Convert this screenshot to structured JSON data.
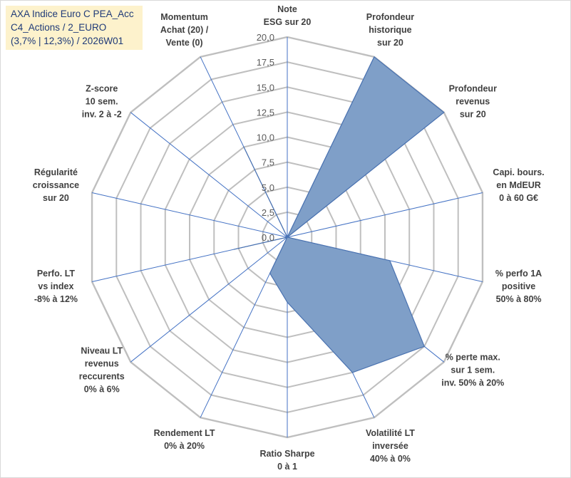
{
  "title": {
    "lines": [
      "AXA Indice Euro C PEA_Acc",
      "C4_Actions / 2_EURO",
      "(3,7% | 12,3%) / 2026W01"
    ]
  },
  "chart_data": {
    "type": "radar",
    "rmin": 0,
    "rmax": 20,
    "tick_step": 2.5,
    "tick_labels": [
      "0,0",
      "2,5",
      "5,0",
      "7,5",
      "10,0",
      "12,5",
      "15,0",
      "17,5",
      "20,0"
    ],
    "gridlines": true,
    "legend": "none",
    "axes": [
      [
        "Note",
        "ESG sur 20"
      ],
      [
        "Profondeur",
        "historique",
        "sur 20"
      ],
      [
        "Profondeur",
        "revenus",
        "sur 20"
      ],
      [
        "Capi. bours.",
        "en MdEUR",
        "0 à 60 G€"
      ],
      [
        "% perfo 1A",
        "positive",
        "50% à 80%"
      ],
      [
        "% perte max.",
        "sur 1 sem.",
        "inv. 50% à 20%"
      ],
      [
        "Volatilité LT",
        "inversée",
        "40% à 0%"
      ],
      [
        "Ratio Sharpe",
        "0 à 1"
      ],
      [
        "Rendement LT",
        "0% à 20%"
      ],
      [
        "Niveau LT",
        "revenus",
        "reccurents",
        "0% à 6%"
      ],
      [
        "Perfo. LT",
        "vs index",
        "-8% à 12%"
      ],
      [
        "Régularité",
        "croissance",
        "sur 20"
      ],
      [
        "Z-score",
        "10 sem.",
        "inv. 2 à -2"
      ],
      [
        "Momentum",
        "Achat (20) /",
        "Vente (0)"
      ]
    ],
    "series": [
      {
        "values": [
          0,
          20,
          20,
          0,
          10.5,
          17.5,
          15,
          6.5,
          4,
          0,
          5.5,
          0,
          0,
          10
        ]
      }
    ],
    "colors": {
      "fill": "#7f9fc8",
      "stroke": "#4a72b0",
      "grid": "#bfbfbf",
      "spoke": "#4472c4"
    }
  }
}
